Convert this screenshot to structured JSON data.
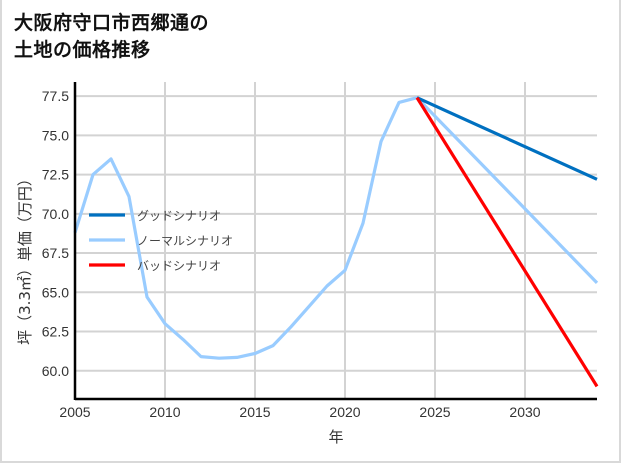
{
  "title_lines": [
    "大阪府守口市西郷通の",
    "土地の価格推移"
  ],
  "colors": {
    "good": "#0070C0",
    "normal": "#99CCFF",
    "bad": "#FF0000",
    "grid": "#d3d3d3",
    "axis": "#000000"
  },
  "chart_data": {
    "type": "line",
    "title": "大阪府守口市西郷通の土地の価格推移",
    "xlabel": "年",
    "ylabel": "坪（3.3㎡）単価（万円）",
    "xlim": [
      2005,
      2034
    ],
    "ylim": [
      58.2,
      78.4
    ],
    "x_ticks": [
      2005,
      2010,
      2015,
      2020,
      2025,
      2030
    ],
    "y_ticks": [
      60.0,
      62.5,
      65.0,
      67.5,
      70.0,
      72.5,
      75.0,
      77.5
    ],
    "y_tick_labels": [
      "60.0",
      "62.5",
      "65.0",
      "67.5",
      "70.0",
      "72.5",
      "75.0",
      "77.5"
    ],
    "grid": true,
    "legend_position": "center-left",
    "series": [
      {
        "name": "グッドシナリオ",
        "key": "good",
        "x": [
          2024,
          2034
        ],
        "values": [
          77.4,
          72.2
        ]
      },
      {
        "name": "ノーマルシナリオ",
        "key": "normal",
        "x": [
          2005,
          2006,
          2007,
          2008,
          2009,
          2010,
          2011,
          2012,
          2013,
          2014,
          2015,
          2016,
          2017,
          2018,
          2019,
          2020,
          2021,
          2022,
          2023,
          2024,
          2034
        ],
        "values": [
          68.8,
          72.5,
          73.5,
          71.1,
          64.7,
          63.0,
          62.0,
          60.9,
          60.8,
          60.85,
          61.1,
          61.6,
          62.8,
          64.1,
          65.4,
          66.4,
          69.4,
          74.6,
          77.1,
          77.4,
          65.6
        ]
      },
      {
        "name": "バッドシナリオ",
        "key": "bad",
        "x": [
          2024,
          2034
        ],
        "values": [
          77.4,
          59.0
        ]
      }
    ]
  }
}
